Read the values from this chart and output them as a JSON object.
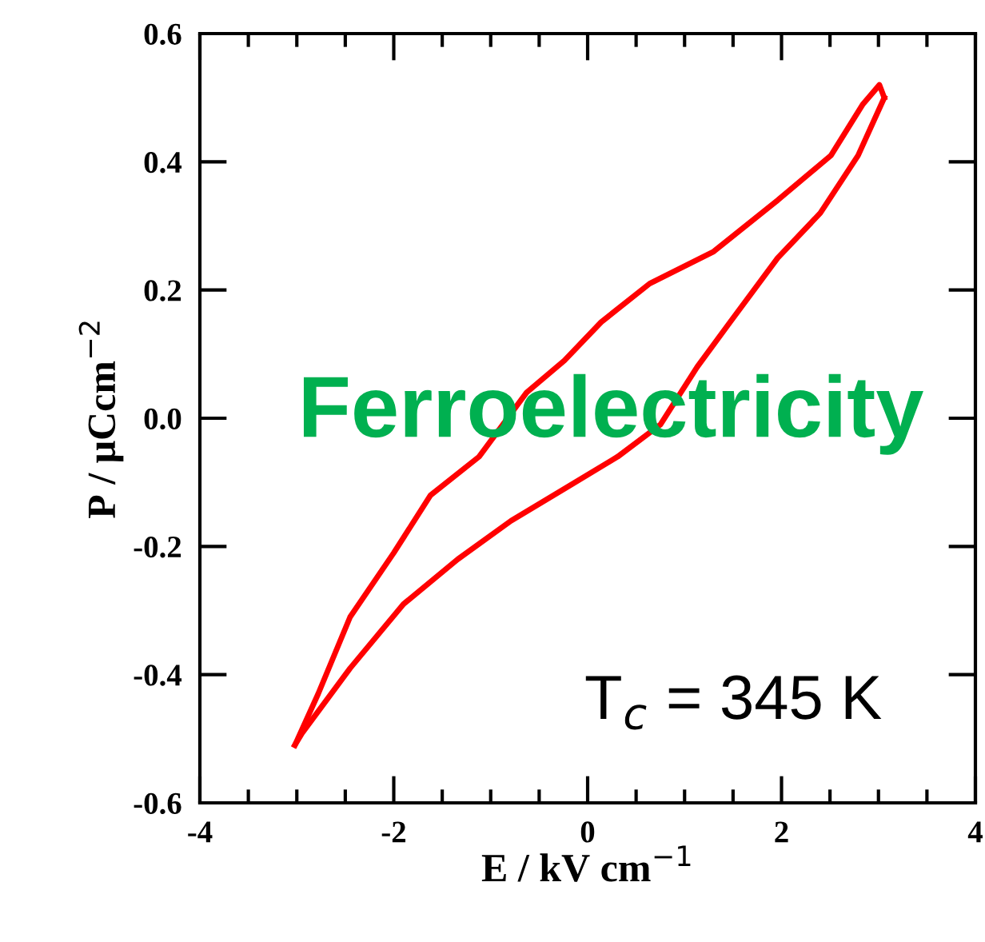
{
  "chart_data": {
    "type": "line",
    "xlabel": "E / kV cm$^{−1}$",
    "ylabel": "P / μCcm$^{−2}$",
    "xlim": [
      -4,
      4
    ],
    "xticks": [
      -4,
      -2,
      0,
      2,
      4
    ],
    "ylim": [
      -0.6,
      0.6
    ],
    "yticks": [
      {
        "value": -0.6,
        "label": "-0.6"
      },
      {
        "value": -0.4,
        "label": "-0.4"
      },
      {
        "value": -0.2,
        "label": "-0.2"
      },
      {
        "value": 0,
        "label": "0.0"
      },
      {
        "value": 0.2,
        "label": "0.2"
      },
      {
        "value": 0.4,
        "label": "0.4"
      },
      {
        "value": 0.6,
        "label": "0.6"
      }
    ],
    "grid": false,
    "legend": false,
    "marker": "none",
    "line_style": "solid",
    "series": [
      {
        "color": "#ff0000",
        "x": [
          -3.02,
          -2.78,
          -2.45,
          -2.0,
          -1.62,
          -1.12,
          -0.63,
          -0.24,
          0.14,
          0.64,
          1.3,
          1.96,
          2.51,
          2.84,
          3.01,
          3.06
        ],
        "values": [
          -0.51,
          -0.43,
          -0.31,
          -0.21,
          -0.12,
          -0.06,
          0.04,
          0.09,
          0.15,
          0.21,
          0.26,
          0.34,
          0.41,
          0.49,
          0.52,
          0.5
        ]
      },
      {
        "color": "#ff0000",
        "x": [
          -3.02,
          -2.94,
          -2.45,
          -1.9,
          -1.34,
          -0.79,
          -0.24,
          0.31,
          0.75,
          1.13,
          1.47,
          1.96,
          2.4,
          2.79,
          3.06
        ],
        "values": [
          -0.51,
          -0.49,
          -0.39,
          -0.29,
          -0.22,
          -0.16,
          -0.11,
          -0.06,
          -0.01,
          0.08,
          0.15,
          0.25,
          0.32,
          0.41,
          0.5
        ]
      }
    ],
    "annotations": [
      "Ferroelectricity",
      "T$_{c}$ = 345 K"
    ]
  }
}
